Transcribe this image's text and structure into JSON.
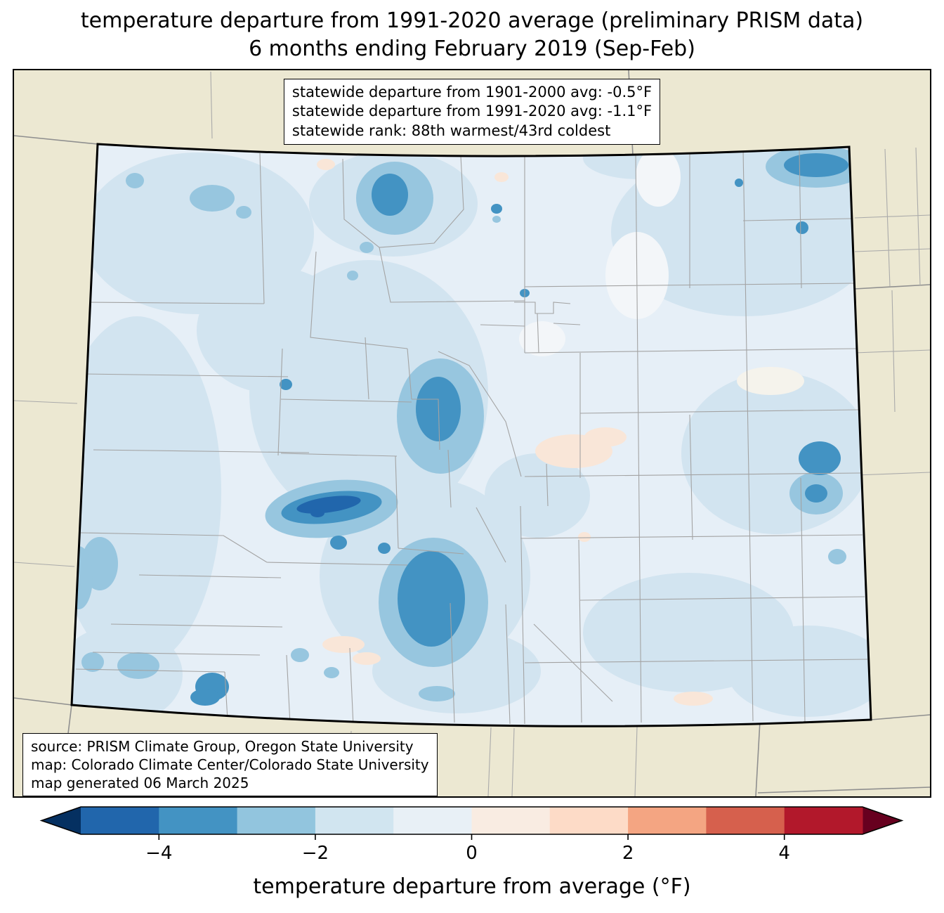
{
  "title": {
    "line1": "temperature departure from 1991-2020 average (preliminary PRISM data)",
    "line2": "6 months ending February 2019 (Sep-Feb)"
  },
  "stats_box": {
    "lines": [
      "statewide departure from 1901-2000 avg: -0.5°F",
      "statewide departure from 1991-2020 avg: -1.1°F",
      "statewide rank: 88th warmest/43rd coldest"
    ]
  },
  "source_box": {
    "lines": [
      "source: PRISM Climate Group, Oregon State University",
      "map: Colorado Climate Center/Colorado State University",
      "map generated 06 March 2025"
    ]
  },
  "colorbar": {
    "label": "temperature departure from average (°F)",
    "range": [
      -5,
      5
    ],
    "ticks": [
      {
        "value": -4,
        "label": "−4"
      },
      {
        "value": -2,
        "label": "−2"
      },
      {
        "value": 0,
        "label": "0"
      },
      {
        "value": 2,
        "label": "2"
      },
      {
        "value": 4,
        "label": "4"
      }
    ],
    "segment_colors": [
      "#2166ac",
      "#4393c3",
      "#92c5de",
      "#d1e5f0",
      "#e8f0f6",
      "#f9ece2",
      "#fddbc7",
      "#f4a582",
      "#d6604d",
      "#b2182b"
    ],
    "left_arrow_color": "#053061",
    "right_arrow_color": "#67001f"
  },
  "map_palette": {
    "background_beige": "#ece8d2",
    "below_average_levels": [
      "#e6eff7",
      "#d2e4f0",
      "#97c6df",
      "#4393c3",
      "#2166ac"
    ],
    "above_average_light": "#f9e6d8",
    "state_border": "#000000",
    "county_line": "#a3a3a3",
    "neighbor_state_line": "#8f8f8f"
  }
}
